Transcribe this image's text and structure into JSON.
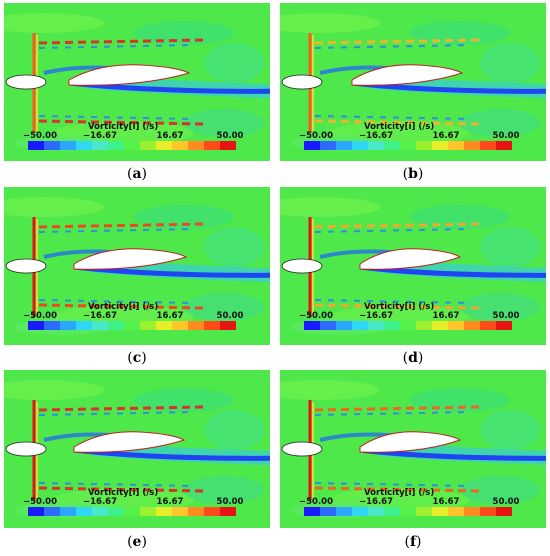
{
  "colorbar": {
    "title": "Vorticity[i] (/s)",
    "ticks": [
      "−50.00",
      "−16.67",
      "16.67",
      "50.00"
    ],
    "colors": [
      "#1a1aff",
      "#2b6bff",
      "#2aa8ff",
      "#2fd7f5",
      "#48e8c8",
      "#3df08a",
      "#55f04a",
      "#9cf030",
      "#e6ee2a",
      "#ffc52a",
      "#ff8a20",
      "#ff4a1a",
      "#e81414"
    ]
  },
  "panels": [
    {
      "label": "a",
      "caption_prefix": "(",
      "caption_suffix": ")"
    },
    {
      "label": "b",
      "caption_prefix": "(",
      "caption_suffix": ")"
    },
    {
      "label": "c",
      "caption_prefix": "(",
      "caption_suffix": ")"
    },
    {
      "label": "d",
      "caption_prefix": "(",
      "caption_suffix": ")"
    },
    {
      "label": "e",
      "caption_prefix": "(",
      "caption_suffix": ")"
    },
    {
      "label": "f",
      "caption_prefix": "(",
      "caption_suffix": ")"
    }
  ]
}
